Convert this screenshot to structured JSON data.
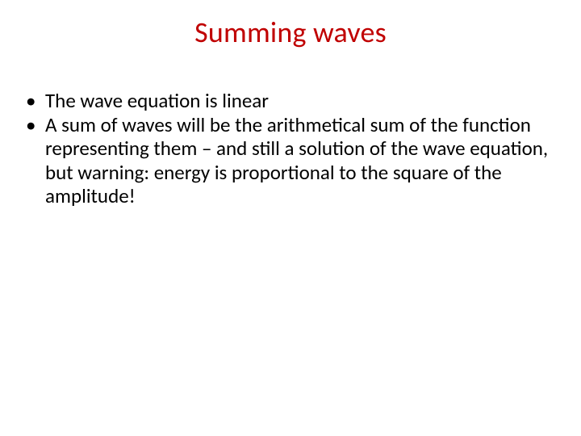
{
  "slide": {
    "title": "Summing waves",
    "title_color": "#c00000",
    "title_fontsize": 36,
    "body_color": "#000000",
    "body_fontsize": 25,
    "background_color": "#ffffff",
    "bullets": [
      {
        "text": "The wave equation is linear"
      },
      {
        "text": "A sum of waves will be the arithmetical sum of the function representing them – and still a solution of the wave equation, but warning: energy is proportional to the square of the amplitude!"
      }
    ]
  }
}
